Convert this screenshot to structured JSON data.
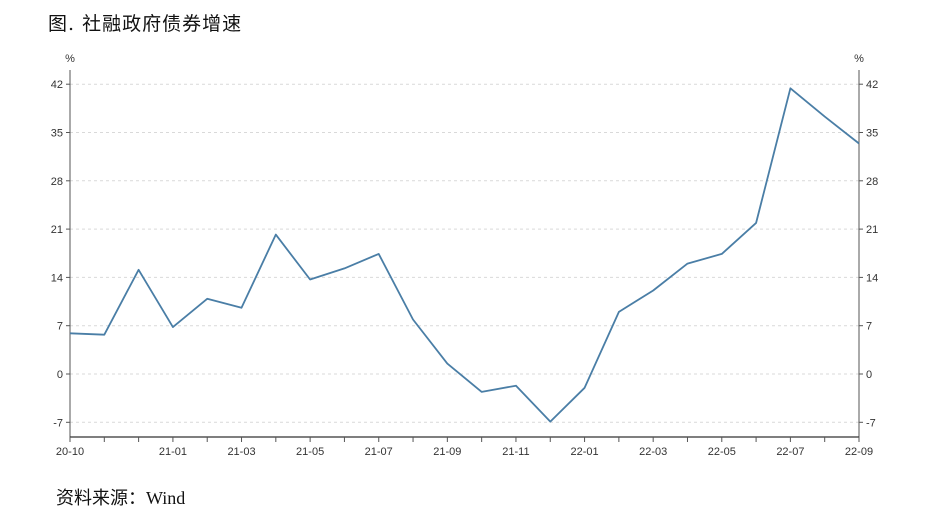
{
  "figure": {
    "title": "图. 社融政府债券增速",
    "source_label": "资料来源：",
    "source_value": "Wind",
    "accent": "#4a7ea6"
  },
  "chart_data": {
    "type": "line",
    "title": "图. 社融政府债券增速",
    "xlabel": "",
    "ylabel": "",
    "y_unit_left": "%",
    "y_unit_right": "%",
    "ylim": [
      -9,
      45
    ],
    "yticks": [
      -7,
      0,
      7,
      14,
      21,
      28,
      35,
      42
    ],
    "grid": true,
    "x_tick_labels": [
      "20-10",
      "21-01",
      "21-03",
      "21-05",
      "21-07",
      "21-09",
      "21-11",
      "22-01",
      "22-03",
      "22-05",
      "22-07",
      "22-09"
    ],
    "x": [
      "20-10",
      "20-11",
      "20-12",
      "21-01",
      "21-02",
      "21-03",
      "21-04",
      "21-05",
      "21-06",
      "21-07",
      "21-08",
      "21-09",
      "21-10",
      "21-11",
      "21-12",
      "22-01",
      "22-02",
      "22-03",
      "22-04",
      "22-05",
      "22-06",
      "22-07",
      "22-08",
      "22-09"
    ],
    "series": [
      {
        "values": [
          5.9,
          5.7,
          15.1,
          6.8,
          10.9,
          9.6,
          20.2,
          13.7,
          15.3,
          17.4,
          7.9,
          1.5,
          -2.6,
          -1.7,
          -6.9,
          -2.0,
          9.0,
          12.1,
          16.0,
          17.4,
          21.9,
          41.4,
          37.3,
          33.4
        ],
        "color": "#4a7ea6"
      }
    ]
  }
}
